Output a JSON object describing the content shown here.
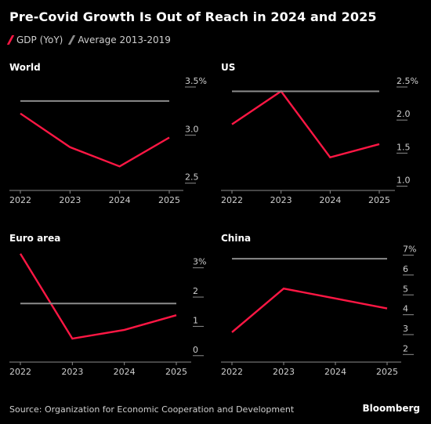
{
  "title": "Pre-Covid Growth Is Out of Reach in 2024 and 2025",
  "legend": {
    "gdp_label": "GDP (YoY)",
    "avg_label": "Average 2013-2019",
    "gdp_color": "#ff1744",
    "avg_color": "#8c8c8c"
  },
  "source": "Source: Organization for Economic Cooperation and Development",
  "brand": "Bloomberg",
  "chart_data": [
    {
      "type": "line",
      "title": "World",
      "categories": [
        "2022",
        "2023",
        "2024",
        "2025"
      ],
      "series": [
        {
          "name": "GDP (YoY)",
          "values": [
            3.2,
            2.85,
            2.65,
            2.95
          ]
        },
        {
          "name": "Average 2013-2019",
          "values": [
            3.33,
            3.33,
            3.33,
            3.33
          ]
        }
      ],
      "ylim": [
        2.4,
        3.5
      ],
      "yticks": [
        2.5,
        3.0,
        3.5
      ],
      "ytick_labels": [
        "2.5",
        "3.0",
        "3.5%"
      ],
      "grid": false,
      "legend": "top"
    },
    {
      "type": "line",
      "title": "US",
      "categories": [
        "2022",
        "2023",
        "2024",
        "2025"
      ],
      "series": [
        {
          "name": "GDP (YoY)",
          "values": [
            1.9,
            2.4,
            1.4,
            1.6
          ]
        },
        {
          "name": "Average 2013-2019",
          "values": [
            2.4,
            2.4,
            2.4,
            2.4
          ]
        }
      ],
      "ylim": [
        0.9,
        2.5
      ],
      "yticks": [
        1.0,
        1.5,
        2.0,
        2.5
      ],
      "ytick_labels": [
        "1.0",
        "1.5",
        "2.0",
        "2.5%"
      ],
      "grid": false,
      "legend": "top"
    },
    {
      "type": "line",
      "title": "Euro area",
      "categories": [
        "2022",
        "2023",
        "2024",
        "2025"
      ],
      "series": [
        {
          "name": "GDP (YoY)",
          "values": [
            3.4,
            0.5,
            0.8,
            1.3
          ]
        },
        {
          "name": "Average 2013-2019",
          "values": [
            1.7,
            1.7,
            1.7,
            1.7
          ]
        }
      ],
      "ylim": [
        -0.3,
        3.5
      ],
      "yticks": [
        0,
        1,
        2,
        3
      ],
      "ytick_labels": [
        "0",
        "1",
        "2",
        "3%"
      ],
      "grid": false,
      "legend": "top"
    },
    {
      "type": "line",
      "title": "China",
      "categories": [
        "2022",
        "2023",
        "2024",
        "2025"
      ],
      "series": [
        {
          "name": "GDP (YoY)",
          "values": [
            3.0,
            5.2,
            4.7,
            4.2
          ]
        },
        {
          "name": "Average 2013-2019",
          "values": [
            6.7,
            6.7,
            6.7,
            6.7
          ]
        }
      ],
      "ylim": [
        1.5,
        7.1
      ],
      "yticks": [
        2,
        3,
        4,
        5,
        6,
        7
      ],
      "ytick_labels": [
        "2",
        "3",
        "4",
        "5",
        "6",
        "7%"
      ],
      "grid": false,
      "legend": "top"
    }
  ]
}
